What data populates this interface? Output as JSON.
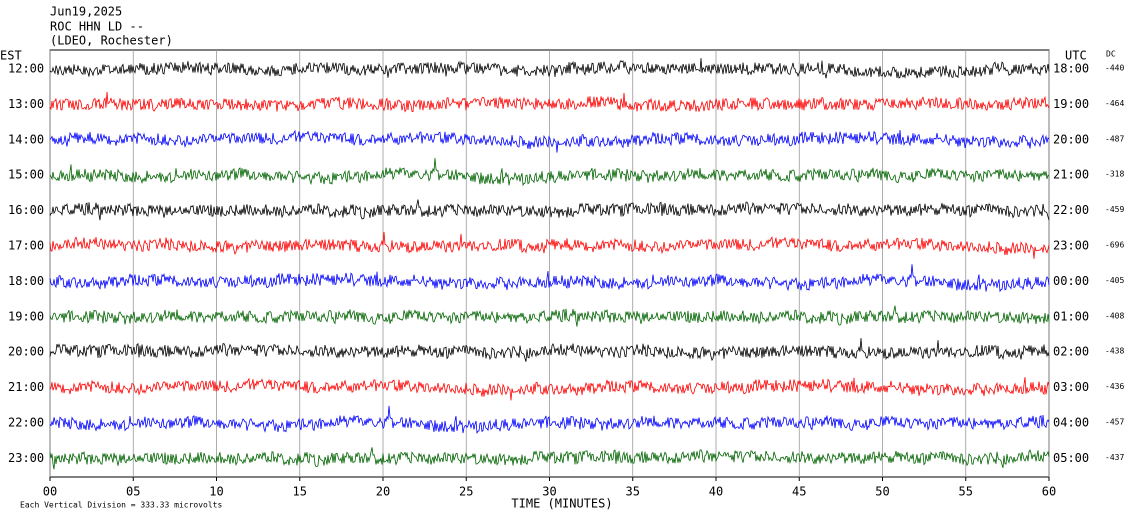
{
  "header": {
    "date": "Jun19,2025",
    "station": "ROC HHN LD --",
    "network": "(LDEO, Rochester)"
  },
  "left_axis_title": "EST",
  "right_axis_title": "UTC",
  "dc_title": "DC",
  "rows": [
    {
      "est": "12:00",
      "utc": "18:00",
      "dc": -440,
      "color": "#000000"
    },
    {
      "est": "13:00",
      "utc": "19:00",
      "dc": -464,
      "color": "#ff0000"
    },
    {
      "est": "14:00",
      "utc": "20:00",
      "dc": -487,
      "color": "#0000ff"
    },
    {
      "est": "15:00",
      "utc": "21:00",
      "dc": -318,
      "color": "#006400"
    },
    {
      "est": "16:00",
      "utc": "22:00",
      "dc": -459,
      "color": "#000000"
    },
    {
      "est": "17:00",
      "utc": "23:00",
      "dc": -696,
      "color": "#ff0000"
    },
    {
      "est": "18:00",
      "utc": "00:00",
      "dc": -405,
      "color": "#0000ff"
    },
    {
      "est": "19:00",
      "utc": "01:00",
      "dc": -408,
      "color": "#006400"
    },
    {
      "est": "20:00",
      "utc": "02:00",
      "dc": -438,
      "color": "#000000"
    },
    {
      "est": "21:00",
      "utc": "03:00",
      "dc": -436,
      "color": "#ff0000"
    },
    {
      "est": "22:00",
      "utc": "04:00",
      "dc": -457,
      "color": "#0000ff"
    },
    {
      "est": "23:00",
      "utc": "05:00",
      "dc": -437,
      "color": "#006400"
    }
  ],
  "x_axis": {
    "label": "TIME (MINUTES)",
    "xlim": [
      0,
      60
    ],
    "xticks": [
      {
        "value": 0,
        "label": "00"
      },
      {
        "value": 5,
        "label": "05"
      },
      10,
      15,
      20,
      25,
      30,
      35,
      40,
      45,
      50,
      55,
      60
    ]
  },
  "footer": "Each Vertical Division =  333.33 microvolts"
}
